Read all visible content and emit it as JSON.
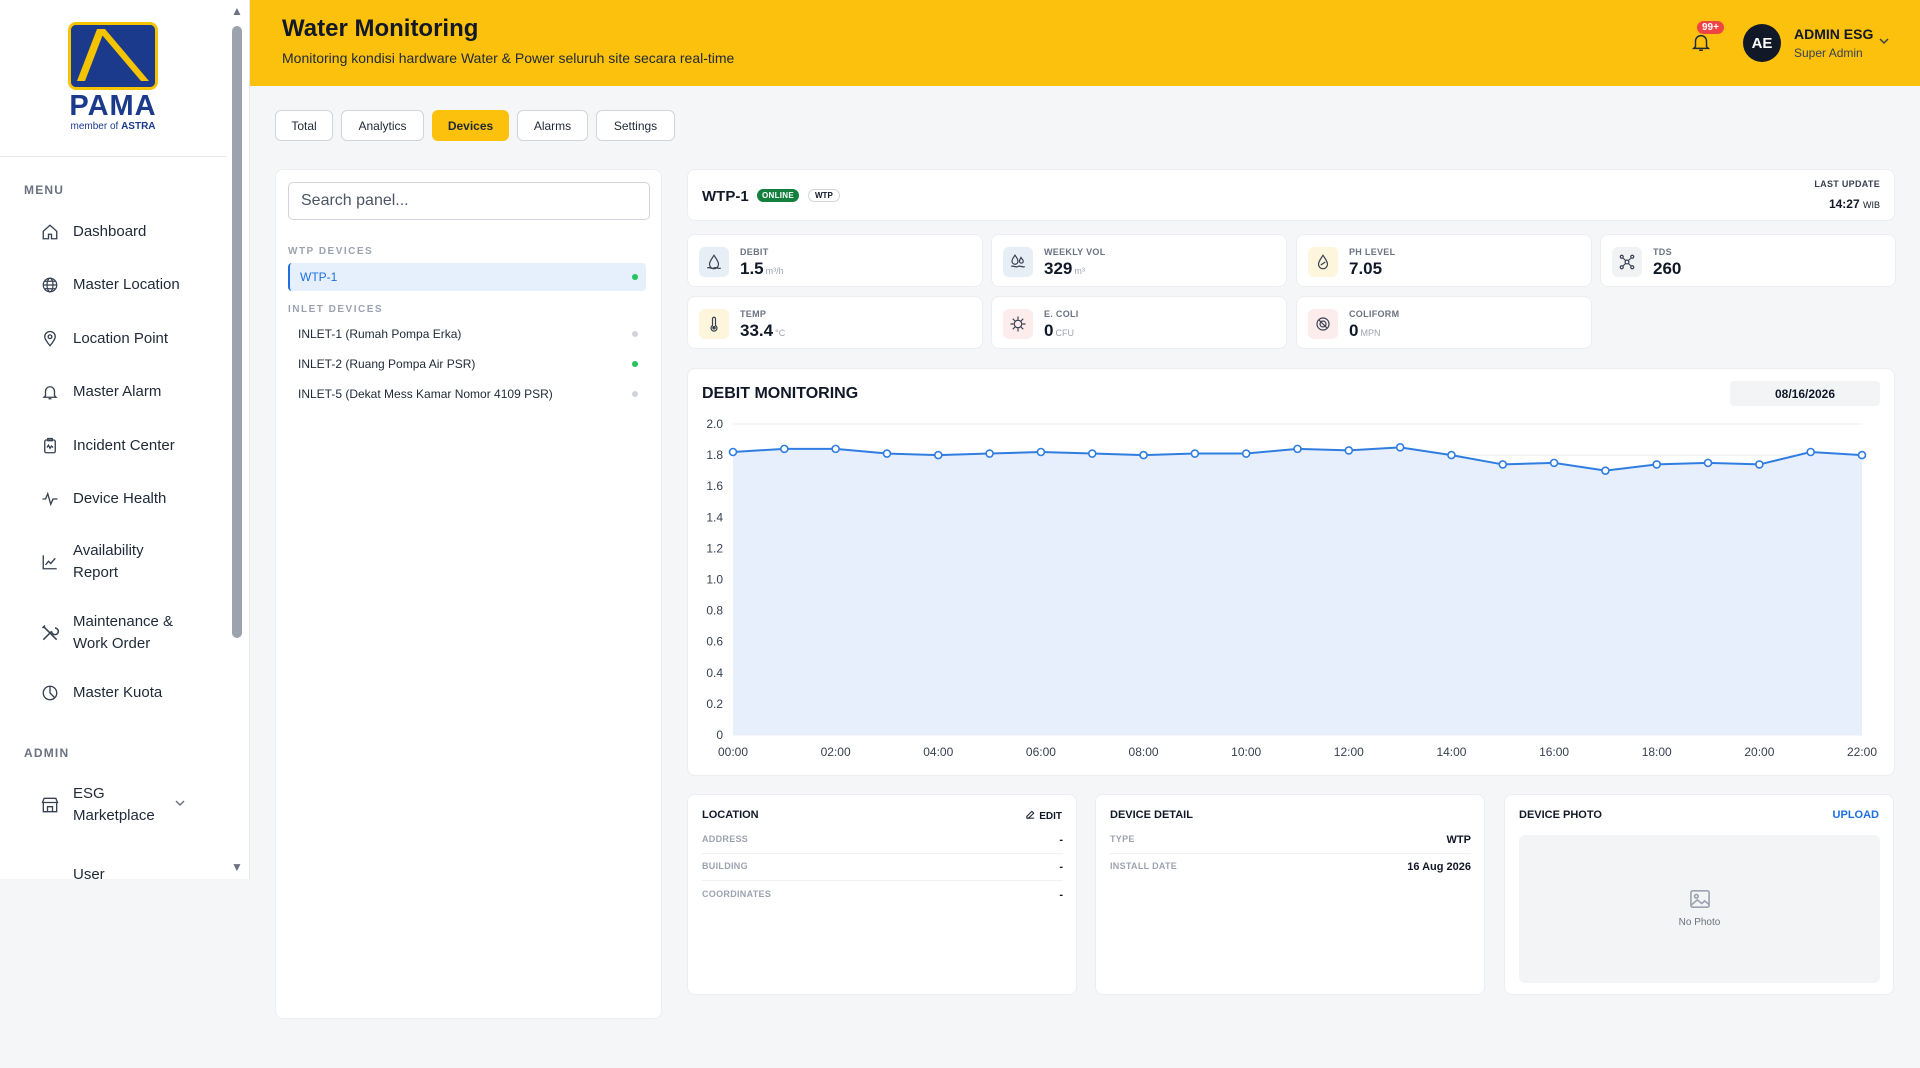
{
  "brand": {
    "name": "PAMA",
    "tagline_prefix": "member of ",
    "tagline_bold": "ASTRA"
  },
  "sidebar": {
    "menu_label": "MENU",
    "items": [
      {
        "label": "Dashboard",
        "icon": "home-icon"
      },
      {
        "label": "Master Location",
        "icon": "globe-icon"
      },
      {
        "label": "Location Point",
        "icon": "map-pin-icon"
      },
      {
        "label": "Master Alarm",
        "icon": "bell-icon"
      },
      {
        "label": "Incident Center",
        "icon": "incident-icon"
      },
      {
        "label": "Device Health",
        "icon": "activity-icon"
      },
      {
        "label_1": "Availability",
        "label_2": "Report",
        "icon": "trending-up-icon"
      },
      {
        "label_1": "Maintenance &",
        "label_2": "Work Order",
        "icon": "tools-icon"
      },
      {
        "label": "Master Kuota",
        "icon": "pie-chart-icon"
      }
    ],
    "admin_label": "ADMIN",
    "admin_items": [
      {
        "label_1": "ESG",
        "label_2": "Marketplace",
        "icon": "store-icon"
      },
      {
        "label": "User",
        "icon": "users-icon"
      }
    ]
  },
  "header": {
    "title": "Water Monitoring",
    "subtitle": "Monitoring kondisi hardware Water & Power seluruh site secara real-time",
    "notification_badge": "99+",
    "user": {
      "initials": "AE",
      "name": "ADMIN ESG",
      "role": "Super Admin"
    }
  },
  "tabs": [
    {
      "label": "Total",
      "active": false
    },
    {
      "label": "Analytics",
      "active": false
    },
    {
      "label": "Devices",
      "active": true
    },
    {
      "label": "Alarms",
      "active": false
    },
    {
      "label": "Settings",
      "active": false
    }
  ],
  "panel": {
    "search_placeholder": "Search panel...",
    "wtp_label": "WTP DEVICES",
    "wtp_devices": [
      {
        "label": "WTP-1",
        "status": "online",
        "active": true
      }
    ],
    "inlet_label": "INLET DEVICES",
    "inlet_devices": [
      {
        "label": "INLET-1 (Rumah Pompa Erka)",
        "status": "offline"
      },
      {
        "label": "INLET-2 (Ruang Pompa Air PSR)",
        "status": "online"
      },
      {
        "label": "INLET-5 (Dekat Mess Kamar Nomor 4109 PSR)",
        "status": "offline"
      }
    ]
  },
  "device": {
    "name": "WTP-1",
    "status": "ONLINE",
    "type": "WTP",
    "last_update_label": "LAST UPDATE",
    "last_update_time": "14:27",
    "last_update_tz": "WIB"
  },
  "metrics": [
    {
      "label": "DEBIT",
      "value": "1.5",
      "unit": "m³/h",
      "icon": "water-flow-icon",
      "bg": "#e8eef6"
    },
    {
      "label": "WEEKLY VOL",
      "value": "329",
      "unit": "m³",
      "icon": "water-volume-icon",
      "bg": "#e8eef6"
    },
    {
      "label": "PH LEVEL",
      "value": "7.05",
      "unit": "",
      "icon": "ph-drop-icon",
      "bg": "#fdf6dc"
    },
    {
      "label": "TDS",
      "value": "260",
      "unit": "",
      "icon": "molecule-icon",
      "bg": "#f1f2f4"
    },
    {
      "label": "TEMP",
      "value": "33.4",
      "unit": "°C",
      "icon": "thermometer-icon",
      "bg": "#fdf6dc"
    },
    {
      "label": "E. COLI",
      "value": "0",
      "unit": "CFU",
      "icon": "bacteria-icon",
      "bg": "#fdecec"
    },
    {
      "label": "COLIFORM",
      "value": "0",
      "unit": "MPN",
      "icon": "coliform-icon",
      "bg": "#fdecec"
    }
  ],
  "chart": {
    "title": "DEBIT MONITORING",
    "date": "08/16/2026"
  },
  "chart_data": {
    "type": "area",
    "title": "DEBIT MONITORING",
    "x": [
      "00:00",
      "01:00",
      "02:00",
      "03:00",
      "04:00",
      "05:00",
      "06:00",
      "07:00",
      "08:00",
      "09:00",
      "10:00",
      "11:00",
      "12:00",
      "13:00",
      "14:00",
      "15:00",
      "16:00",
      "17:00",
      "18:00",
      "19:00",
      "20:00",
      "21:00",
      "22:00"
    ],
    "x_tick_labels": [
      "00:00",
      "02:00",
      "04:00",
      "06:00",
      "08:00",
      "10:00",
      "12:00",
      "14:00",
      "16:00",
      "18:00",
      "20:00",
      "22:00"
    ],
    "series": [
      {
        "values": [
          1.82,
          1.84,
          1.84,
          1.81,
          1.8,
          1.81,
          1.82,
          1.81,
          1.8,
          1.81,
          1.81,
          1.84,
          1.83,
          1.85,
          1.8,
          1.74,
          1.75,
          1.7,
          1.74,
          1.75,
          1.74,
          1.82,
          1.8
        ]
      }
    ],
    "y_ticks": [
      "0",
      "0.2",
      "0.4",
      "0.6",
      "0.8",
      "1.0",
      "1.2",
      "1.4",
      "1.6",
      "1.8",
      "2.0"
    ],
    "ylim": [
      0,
      2.0
    ],
    "grid": true,
    "line_color": "#2f7de1",
    "fill_color": "#e8effc"
  },
  "location": {
    "title": "LOCATION",
    "edit_label": "EDIT",
    "rows": [
      {
        "key": "ADDRESS",
        "value": "-"
      },
      {
        "key": "BUILDING",
        "value": "-"
      },
      {
        "key": "COORDINATES",
        "value": "-"
      }
    ]
  },
  "device_detail": {
    "title": "DEVICE DETAIL",
    "rows": [
      {
        "key": "TYPE",
        "value": "WTP"
      },
      {
        "key": "INSTALL DATE",
        "value": "16 Aug 2026"
      }
    ]
  },
  "photo": {
    "title": "DEVICE PHOTO",
    "upload_label": "UPLOAD",
    "empty_label": "No Photo"
  }
}
